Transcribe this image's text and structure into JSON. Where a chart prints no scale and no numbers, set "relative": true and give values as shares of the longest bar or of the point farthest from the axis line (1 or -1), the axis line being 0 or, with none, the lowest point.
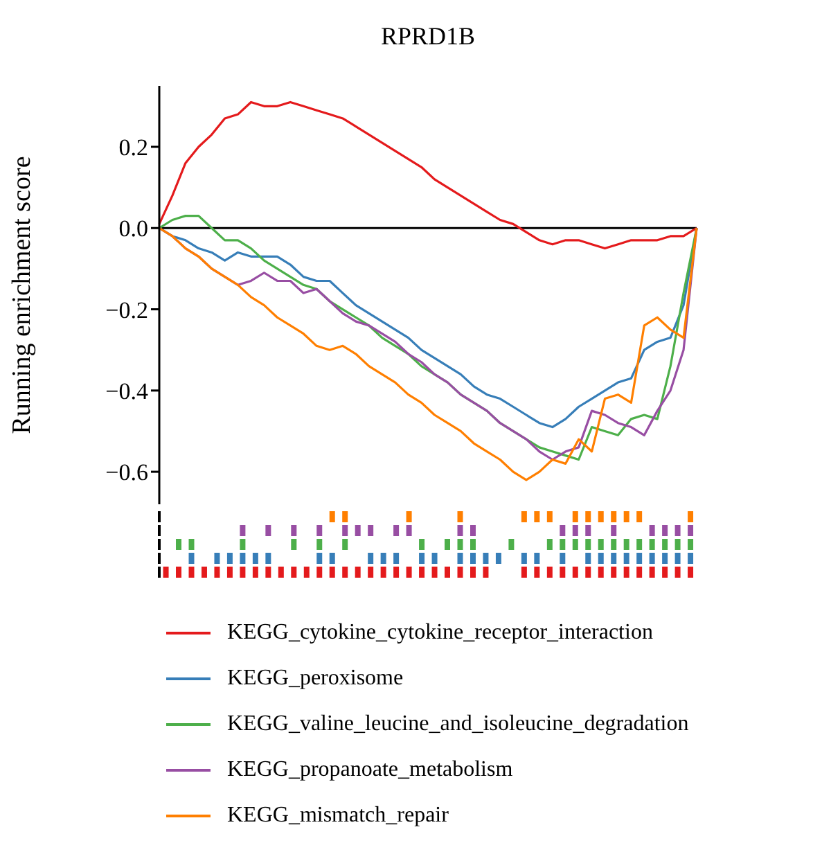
{
  "chart_data": [
    {
      "type": "line",
      "title": "RPRD1B",
      "ylabel": "Running enrichment score",
      "categories": [
        null,
        null,
        null,
        null,
        null,
        null,
        null,
        null,
        null,
        null,
        null,
        null,
        null,
        null,
        null,
        null,
        null,
        null,
        null,
        null,
        null,
        null,
        null,
        null,
        null,
        null,
        null,
        null,
        null,
        null,
        null,
        null,
        null,
        null,
        null,
        null,
        null,
        null,
        null,
        null,
        null,
        null
      ],
      "ylim": [
        -0.68,
        0.35
      ],
      "yticks": [
        {
          "value": -0.6,
          "label": "−0.6"
        },
        {
          "value": -0.4,
          "label": "−0.4"
        },
        {
          "value": -0.2,
          "label": "−0.2"
        },
        {
          "value": 0,
          "label": "0.0"
        },
        {
          "value": 0.2,
          "label": "0.2"
        }
      ],
      "tick_labels": "y",
      "legend": "bottom",
      "marker": "none",
      "line_style": "solid",
      "ref_lines": [
        {
          "axis": "y",
          "value": 0,
          "color": "#000000"
        }
      ],
      "series": [
        {
          "name": "KEGG_cytokine_cytokine_receptor_interaction",
          "color": "#e41a1c",
          "values": [
            0.01,
            0.08,
            0.16,
            0.2,
            0.23,
            0.27,
            0.28,
            0.31,
            0.3,
            0.3,
            0.31,
            0.3,
            0.29,
            0.28,
            0.27,
            0.25,
            0.23,
            0.21,
            0.19,
            0.17,
            0.15,
            0.12,
            0.1,
            0.08,
            0.06,
            0.04,
            0.02,
            0.01,
            -0.01,
            -0.03,
            -0.04,
            -0.03,
            -0.03,
            -0.04,
            -0.05,
            -0.04,
            -0.03,
            -0.03,
            -0.03,
            -0.02,
            -0.02,
            0
          ]
        },
        {
          "name": "KEGG_peroxisome",
          "color": "#377eb8",
          "values": [
            0,
            -0.02,
            -0.03,
            -0.05,
            -0.06,
            -0.08,
            -0.06,
            -0.07,
            -0.07,
            -0.07,
            -0.09,
            -0.12,
            -0.13,
            -0.13,
            -0.16,
            -0.19,
            -0.21,
            -0.23,
            -0.25,
            -0.27,
            -0.3,
            -0.32,
            -0.34,
            -0.36,
            -0.39,
            -0.41,
            -0.42,
            -0.44,
            -0.46,
            -0.48,
            -0.49,
            -0.47,
            -0.44,
            -0.42,
            -0.4,
            -0.38,
            -0.37,
            -0.3,
            -0.28,
            -0.27,
            -0.19,
            0
          ]
        },
        {
          "name": "KEGG_valine_leucine_and_isoleucine_degradation",
          "color": "#4daf4a",
          "values": [
            0,
            0.02,
            0.03,
            0.03,
            0,
            -0.03,
            -0.03,
            -0.05,
            -0.08,
            -0.1,
            -0.12,
            -0.14,
            -0.15,
            -0.18,
            -0.2,
            -0.22,
            -0.24,
            -0.27,
            -0.29,
            -0.31,
            -0.34,
            -0.36,
            -0.38,
            -0.41,
            -0.43,
            -0.45,
            -0.48,
            -0.5,
            -0.52,
            -0.54,
            -0.55,
            -0.56,
            -0.57,
            -0.49,
            -0.5,
            -0.51,
            -0.47,
            -0.46,
            -0.47,
            -0.34,
            -0.16,
            0
          ]
        },
        {
          "name": "KEGG_propanoate_metabolism",
          "color": "#984ea3",
          "values": [
            0,
            -0.02,
            -0.05,
            -0.07,
            -0.1,
            -0.12,
            -0.14,
            -0.13,
            -0.11,
            -0.13,
            -0.13,
            -0.16,
            -0.15,
            -0.18,
            -0.21,
            -0.23,
            -0.24,
            -0.26,
            -0.28,
            -0.31,
            -0.33,
            -0.36,
            -0.38,
            -0.41,
            -0.43,
            -0.45,
            -0.48,
            -0.5,
            -0.52,
            -0.55,
            -0.57,
            -0.55,
            -0.54,
            -0.45,
            -0.46,
            -0.48,
            -0.49,
            -0.51,
            -0.45,
            -0.4,
            -0.3,
            0
          ]
        },
        {
          "name": "KEGG_mismatch_repair",
          "color": "#ff7f00",
          "values": [
            0,
            -0.02,
            -0.05,
            -0.07,
            -0.1,
            -0.12,
            -0.14,
            -0.17,
            -0.19,
            -0.22,
            -0.24,
            -0.26,
            -0.29,
            -0.3,
            -0.29,
            -0.31,
            -0.34,
            -0.36,
            -0.38,
            -0.41,
            -0.43,
            -0.46,
            -0.48,
            -0.5,
            -0.53,
            -0.55,
            -0.57,
            -0.6,
            -0.62,
            -0.6,
            -0.57,
            -0.58,
            -0.52,
            -0.55,
            -0.42,
            -0.41,
            -0.43,
            -0.24,
            -0.22,
            -0.25,
            -0.27,
            0
          ]
        }
      ]
    },
    {
      "type": "bar",
      "relative": true,
      "tick_labels": false,
      "categories": [
        null,
        null,
        null,
        null,
        null,
        null,
        null,
        null,
        null,
        null,
        null,
        null,
        null,
        null,
        null,
        null,
        null,
        null,
        null,
        null,
        null,
        null,
        null,
        null,
        null,
        null,
        null,
        null,
        null,
        null,
        null,
        null,
        null,
        null,
        null,
        null,
        null,
        null,
        null,
        null,
        null,
        null
      ],
      "series": [
        {
          "color": "#ff7f00",
          "values": [
            null,
            null,
            null,
            null,
            null,
            null,
            null,
            null,
            null,
            null,
            null,
            null,
            null,
            1,
            1,
            null,
            null,
            null,
            null,
            1,
            null,
            null,
            null,
            1,
            null,
            null,
            null,
            null,
            1,
            1,
            1,
            null,
            1,
            1,
            1,
            1,
            1,
            1,
            null,
            null,
            null,
            1
          ]
        }
      ]
    },
    {
      "type": "bar",
      "relative": true,
      "tick_labels": false,
      "categories": [
        null,
        null,
        null,
        null,
        null,
        null,
        null,
        null,
        null,
        null,
        null,
        null,
        null,
        null,
        null,
        null,
        null,
        null,
        null,
        null,
        null,
        null,
        null,
        null,
        null,
        null,
        null,
        null,
        null,
        null,
        null,
        null,
        null,
        null,
        null,
        null,
        null,
        null,
        null,
        null,
        null,
        null
      ],
      "series": [
        {
          "color": "#984ea3",
          "values": [
            null,
            null,
            null,
            null,
            null,
            null,
            1,
            null,
            1,
            null,
            1,
            null,
            1,
            null,
            1,
            1,
            1,
            null,
            1,
            1,
            null,
            null,
            null,
            1,
            1,
            null,
            null,
            null,
            null,
            null,
            null,
            1,
            1,
            1,
            null,
            1,
            null,
            null,
            1,
            1,
            1,
            1
          ]
        }
      ]
    },
    {
      "type": "bar",
      "relative": true,
      "tick_labels": false,
      "categories": [
        null,
        null,
        null,
        null,
        null,
        null,
        null,
        null,
        null,
        null,
        null,
        null,
        null,
        null,
        null,
        null,
        null,
        null,
        null,
        null,
        null,
        null,
        null,
        null,
        null,
        null,
        null,
        null,
        null,
        null,
        null,
        null,
        null,
        null,
        null,
        null,
        null,
        null,
        null,
        null,
        null,
        null
      ],
      "series": [
        {
          "color": "#4daf4a",
          "values": [
            null,
            1,
            1,
            null,
            null,
            null,
            1,
            null,
            null,
            null,
            1,
            null,
            1,
            null,
            1,
            null,
            null,
            null,
            null,
            null,
            1,
            null,
            1,
            1,
            1,
            null,
            null,
            1,
            null,
            null,
            1,
            1,
            1,
            1,
            1,
            1,
            1,
            1,
            1,
            1,
            1,
            1
          ]
        }
      ]
    },
    {
      "type": "bar",
      "relative": true,
      "tick_labels": false,
      "categories": [
        null,
        null,
        null,
        null,
        null,
        null,
        null,
        null,
        null,
        null,
        null,
        null,
        null,
        null,
        null,
        null,
        null,
        null,
        null,
        null,
        null,
        null,
        null,
        null,
        null,
        null,
        null,
        null,
        null,
        null,
        null,
        null,
        null,
        null,
        null,
        null,
        null,
        null,
        null,
        null,
        null,
        null
      ],
      "series": [
        {
          "color": "#377eb8",
          "values": [
            null,
            null,
            1,
            null,
            1,
            1,
            1,
            1,
            1,
            null,
            null,
            null,
            1,
            1,
            null,
            null,
            1,
            1,
            1,
            null,
            1,
            1,
            null,
            1,
            1,
            1,
            1,
            null,
            1,
            1,
            null,
            1,
            null,
            1,
            1,
            1,
            1,
            1,
            1,
            1,
            1,
            1
          ]
        }
      ]
    },
    {
      "type": "bar",
      "relative": true,
      "tick_labels": false,
      "categories": [
        null,
        null,
        null,
        null,
        null,
        null,
        null,
        null,
        null,
        null,
        null,
        null,
        null,
        null,
        null,
        null,
        null,
        null,
        null,
        null,
        null,
        null,
        null,
        null,
        null,
        null,
        null,
        null,
        null,
        null,
        null,
        null,
        null,
        null,
        null,
        null,
        null,
        null,
        null,
        null,
        null,
        null
      ],
      "series": [
        {
          "color": "#e41a1c",
          "values": [
            1,
            1,
            1,
            1,
            1,
            1,
            1,
            1,
            1,
            1,
            1,
            1,
            1,
            1,
            1,
            1,
            1,
            1,
            1,
            1,
            1,
            1,
            1,
            1,
            1,
            1,
            null,
            null,
            1,
            1,
            1,
            1,
            1,
            1,
            1,
            1,
            1,
            1,
            1,
            1,
            1,
            1
          ]
        }
      ]
    }
  ]
}
